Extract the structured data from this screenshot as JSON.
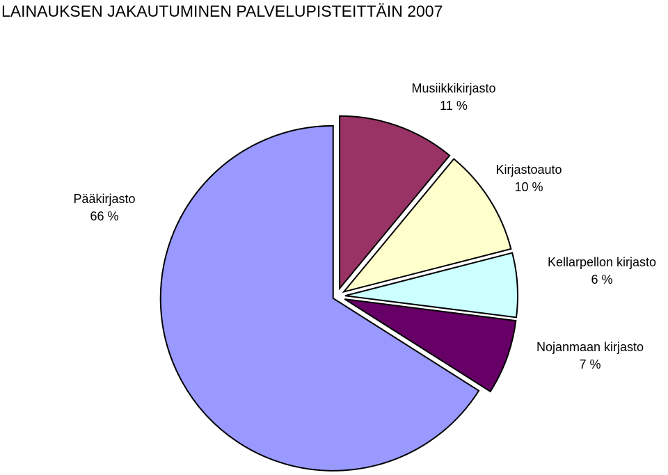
{
  "chart_data": {
    "type": "pie",
    "title": "LAINAUKSEN JAKAUTUMINEN PALVELUPISTEITTÄIN 2007",
    "categories": [
      "Musiikkikirjasto",
      "Kirjastoauto",
      "Kellarpellon kirjasto",
      "Nojanmaan kirjasto",
      "Pääkirjasto"
    ],
    "values": [
      11,
      10,
      6,
      7,
      66
    ],
    "value_labels": [
      "11 %",
      "10 %",
      "6 %",
      "7 %",
      "66 %"
    ],
    "colors": [
      "#993366",
      "#FFFFCC",
      "#CCFFFF",
      "#660066",
      "#9999FF"
    ]
  }
}
